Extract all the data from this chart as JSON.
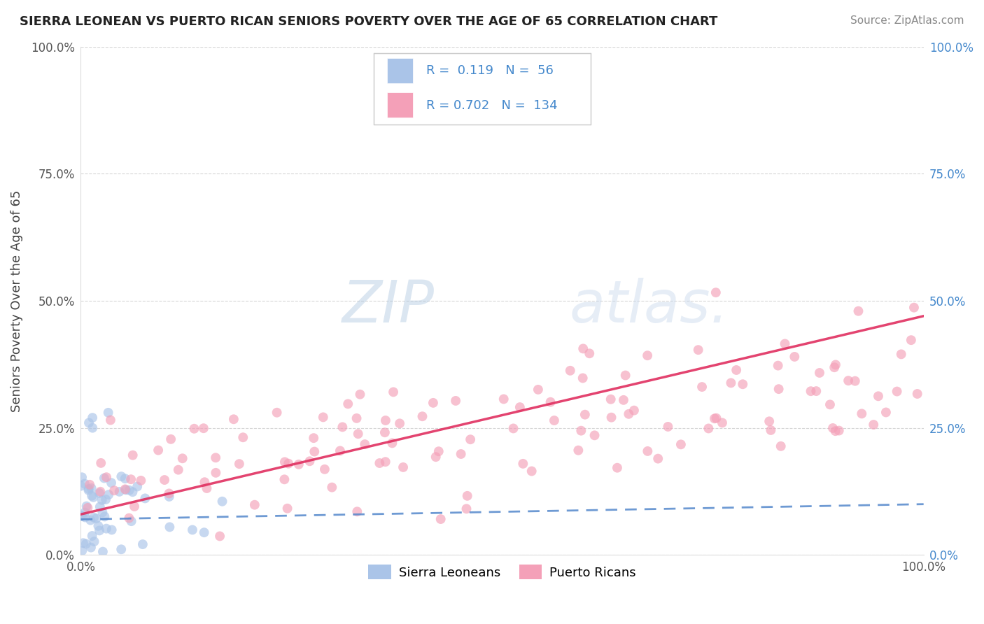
{
  "title": "SIERRA LEONEAN VS PUERTO RICAN SENIORS POVERTY OVER THE AGE OF 65 CORRELATION CHART",
  "source": "Source: ZipAtlas.com",
  "ylabel": "Seniors Poverty Over the Age of 65",
  "r_sierra": 0.119,
  "n_sierra": 56,
  "r_puerto": 0.702,
  "n_puerto": 134,
  "sierra_color": "#aac4e8",
  "puerto_color": "#f4a0b8",
  "sierra_line_color": "#5588cc",
  "puerto_line_color": "#e03060",
  "legend_label_sierra": "Sierra Leoneans",
  "legend_label_puerto": "Puerto Ricans",
  "watermark_text": "ZIPatlas.",
  "xlim": [
    0,
    1
  ],
  "ylim": [
    0,
    1
  ],
  "yticks": [
    0,
    0.25,
    0.5,
    0.75,
    1.0
  ],
  "ytick_labels_left": [
    "0.0%",
    "25.0%",
    "50.0%",
    "75.0%",
    "100.0%"
  ],
  "ytick_labels_right": [
    "0.0%",
    "25.0%",
    "50.0%",
    "75.0%",
    "100.0%"
  ],
  "xtick_labels": [
    "0.0%",
    "100.0%"
  ],
  "background_color": "#ffffff",
  "grid_color": "#cccccc",
  "right_tick_color": "#4488cc",
  "left_tick_color": "#555555",
  "title_color": "#222222",
  "source_color": "#888888"
}
